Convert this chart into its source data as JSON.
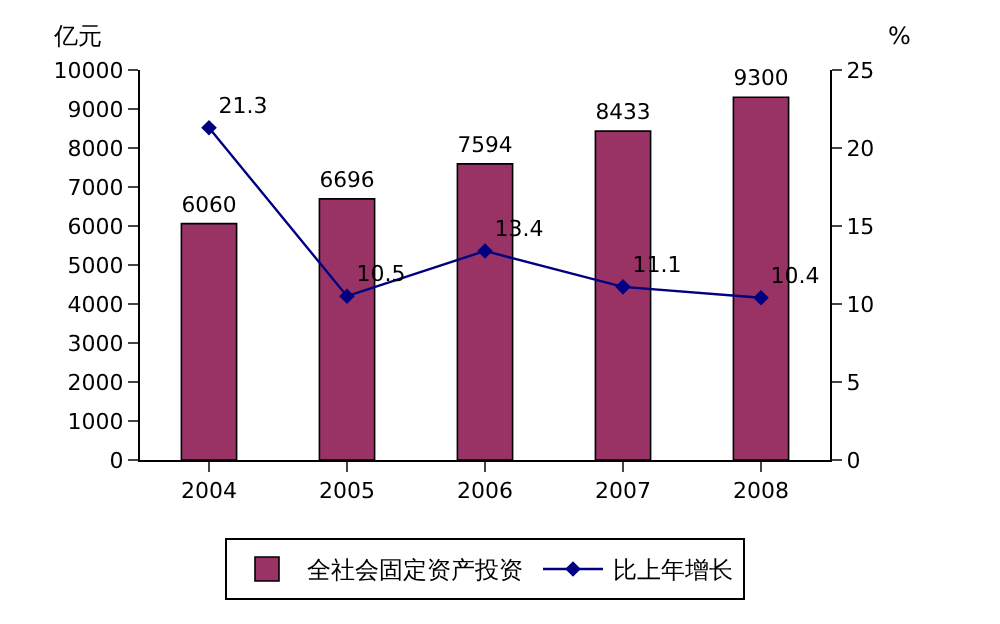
{
  "chart_data": {
    "type": "bar",
    "ylabel": "亿元",
    "y2label": "%",
    "categories": [
      "2004",
      "2005",
      "2006",
      "2007",
      "2008"
    ],
    "series": [
      {
        "name": "全社会固定资产投资",
        "color": "#993366",
        "values": [
          6060,
          6696,
          7594,
          8433,
          9300
        ]
      },
      {
        "name": "比上年增长",
        "type": "line",
        "axis": "y2",
        "color": "#000080",
        "marker": "diamond",
        "values": [
          21.3,
          10.5,
          13.4,
          11.1,
          10.4
        ]
      }
    ],
    "ylim": [
      0,
      10000
    ],
    "yticks": [
      0,
      1000,
      2000,
      3000,
      4000,
      5000,
      6000,
      7000,
      8000,
      9000,
      10000
    ],
    "y2lim": [
      0,
      25
    ],
    "y2ticks": [
      0,
      5,
      10,
      15,
      20,
      25
    ],
    "data_labels": true,
    "grid": false,
    "legend": "bottom"
  }
}
